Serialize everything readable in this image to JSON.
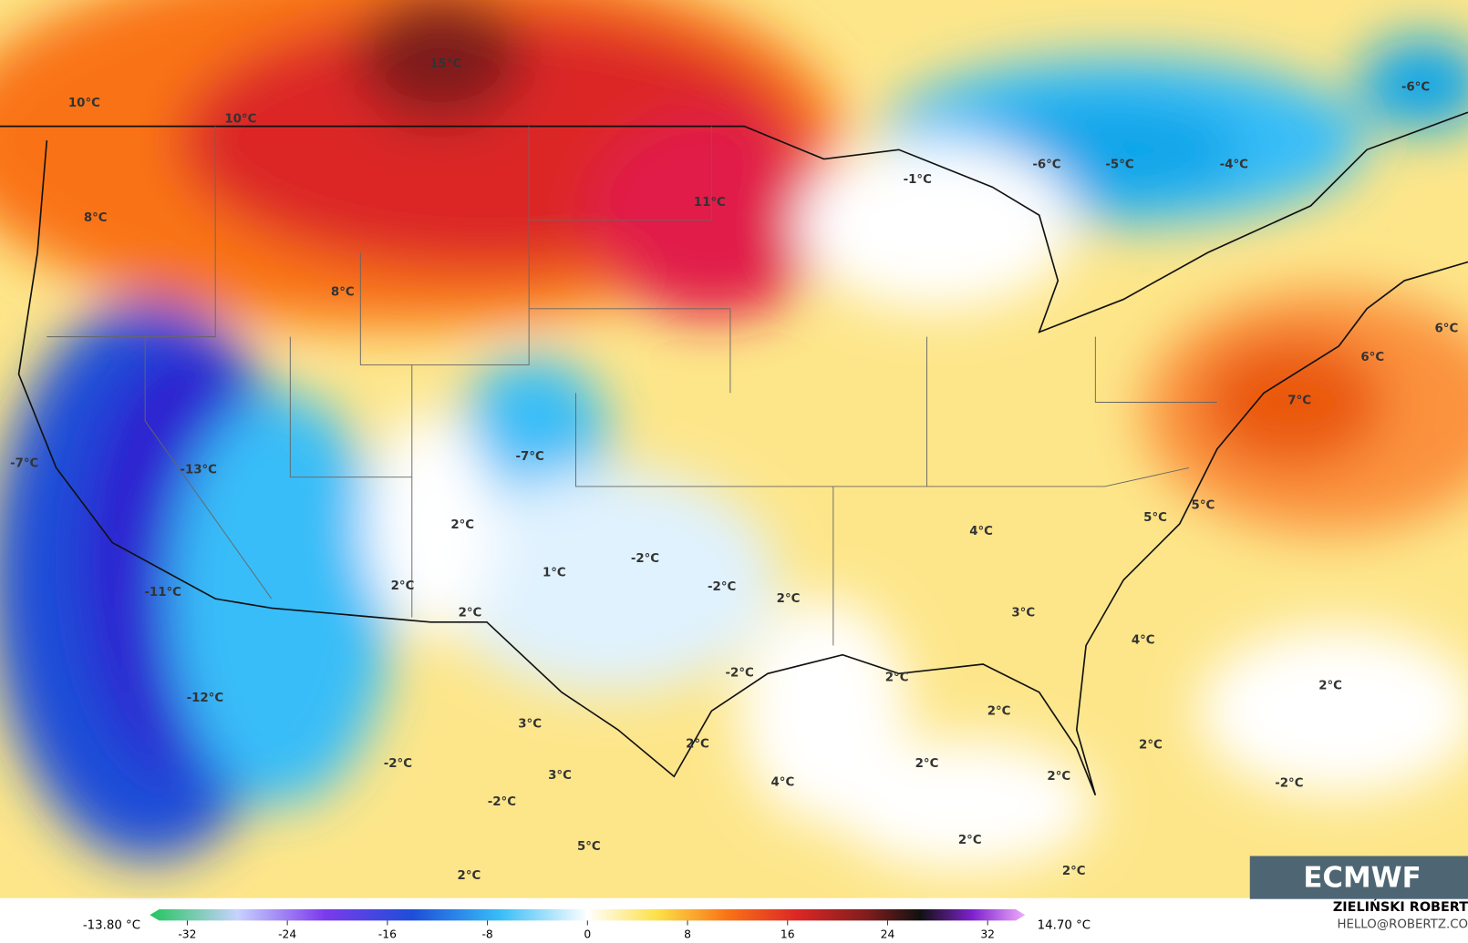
{
  "map": {
    "labels": [
      "15°C",
      "10°C",
      "10°C",
      "8°C",
      "11°C",
      "8°C",
      "-1°C",
      "-6°C",
      "-5°C",
      "-4°C",
      "-6°C",
      "6°C",
      "6°C",
      "7°C",
      "-7°C",
      "-13°C",
      "-7°C",
      "2°C",
      "5°C",
      "5°C",
      "4°C",
      "1°C",
      "-2°C",
      "-2°C",
      "2°C",
      "2°C",
      "-11°C",
      "2°C",
      "3°C",
      "4°C",
      "-2°C",
      "2°C",
      "2°C",
      "-12°C",
      "2°C",
      "3°C",
      "2°C",
      "2°C",
      "-2°C",
      "3°C",
      "4°C",
      "2°C",
      "2°C",
      "-2°C",
      "-2°C",
      "5°C",
      "2°C",
      "2°C",
      "2°C"
    ],
    "logo": "ECMWF"
  },
  "colorbar": {
    "min_label": "-13.80 °C",
    "max_label": "14.70 °C",
    "lim": [
      -35,
      35
    ],
    "ticks": [
      -32,
      -24,
      -16,
      -8,
      0,
      8,
      16,
      24,
      32
    ]
  },
  "credits": {
    "author": "ZIELIŃSKI ROBERT",
    "email": "HELLO@ROBERTZ.CO"
  }
}
